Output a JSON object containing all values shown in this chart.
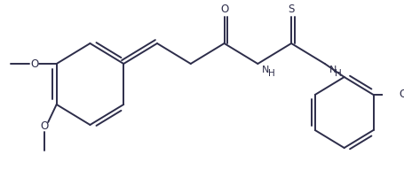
{
  "background_color": "#ffffff",
  "line_color": "#2d2d4a",
  "line_width": 1.4,
  "font_size": 8.5,
  "figsize": [
    4.55,
    1.92
  ],
  "dpi": 100,
  "xlim": [
    0,
    455
  ],
  "ylim": [
    0,
    192
  ]
}
